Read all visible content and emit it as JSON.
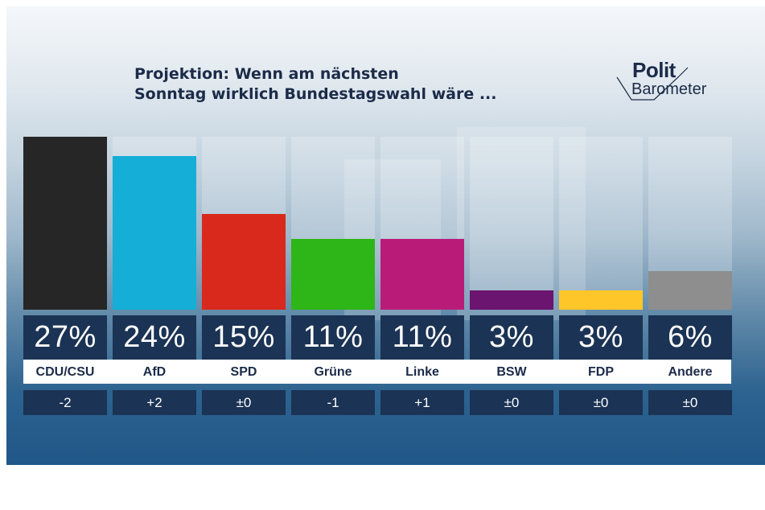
{
  "title_line1": "Projektion: Wenn am nächsten",
  "title_line2": "Sonntag wirklich Bundestagswahl wäre ...",
  "logo": {
    "top": "Polit",
    "bottom": "Barometer"
  },
  "chart_data": {
    "type": "bar",
    "title": "Projektion: Wenn am nächsten Sonntag wirklich Bundestagswahl wäre ...",
    "xlabel": "",
    "ylabel": "",
    "ylim": [
      0,
      27
    ],
    "categories": [
      "CDU/CSU",
      "AfD",
      "SPD",
      "Grüne",
      "Linke",
      "BSW",
      "FDP",
      "Andere"
    ],
    "values": [
      27,
      24,
      15,
      11,
      11,
      3,
      3,
      6
    ],
    "value_labels": [
      "27%",
      "24%",
      "15%",
      "11%",
      "11%",
      "3%",
      "3%",
      "6%"
    ],
    "changes": [
      "-2",
      "+2",
      "±0",
      "-1",
      "+1",
      "±0",
      "±0",
      "±0"
    ],
    "colors": [
      "#262626",
      "#14aed6",
      "#d8291c",
      "#2eb518",
      "#b91c78",
      "#6b1470",
      "#ffc62a",
      "#8e8e8e"
    ]
  }
}
